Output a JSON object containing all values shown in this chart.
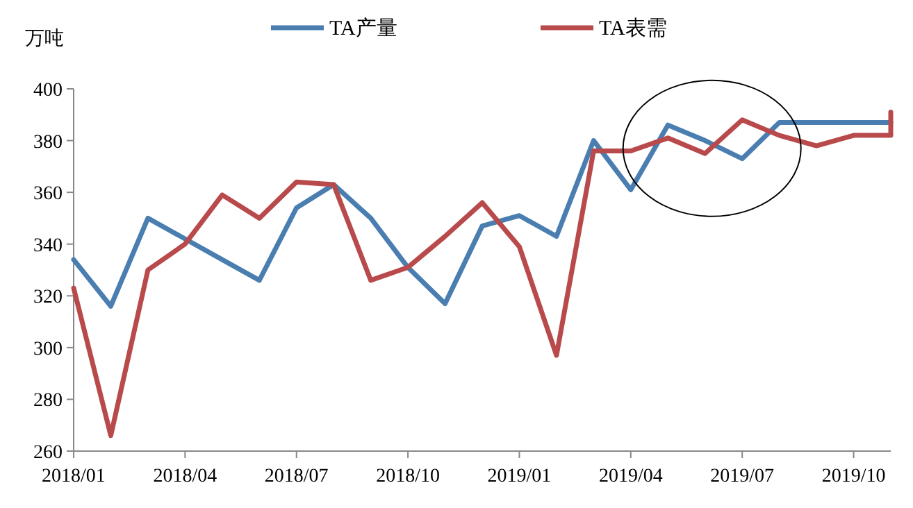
{
  "chart_data": {
    "type": "line",
    "ylabel": "万吨",
    "legend": "top",
    "grid": false,
    "line_style": "solid",
    "xlim": [
      "2018-01",
      "2019-11"
    ],
    "xticks": [
      {
        "value": "2018-01",
        "label": "2018/01"
      },
      {
        "value": "2018-04",
        "label": "2018/04"
      },
      {
        "value": "2018-07",
        "label": "2018/07"
      },
      {
        "value": "2018-10",
        "label": "2018/10"
      },
      {
        "value": "2019-01",
        "label": "2019/01"
      },
      {
        "value": "2019-04",
        "label": "2019/04"
      },
      {
        "value": "2019-07",
        "label": "2019/07"
      },
      {
        "value": "2019-10",
        "label": "2019/10"
      }
    ],
    "ylim": [
      260,
      400
    ],
    "yticks": [
      260,
      280,
      300,
      320,
      340,
      360,
      380,
      400
    ],
    "series": [
      {
        "name": "TA产量",
        "color": "#4a7eb0",
        "x": [
          "2018-01",
          "2018-02",
          "2018-03",
          "2018-04",
          "2018-05",
          "2018-06",
          "2018-07",
          "2018-08",
          "2018-09",
          "2018-10",
          "2018-11",
          "2018-12",
          "2019-01",
          "2019-02",
          "2019-03",
          "2019-04",
          "2019-05",
          "2019-06",
          "2019-07",
          "2019-08",
          "2019-09",
          "2019-10",
          "2019-11"
        ],
        "values": [
          334,
          316,
          350,
          342,
          334,
          326,
          354,
          363,
          350,
          331,
          317,
          347,
          351,
          343,
          380,
          361,
          386,
          380,
          373,
          387,
          387,
          387,
          387
        ]
      },
      {
        "name": "TA表需",
        "color": "#b94a4c",
        "x": [
          "2018-01",
          "2018-02",
          "2018-03",
          "2018-04",
          "2018-05",
          "2018-06",
          "2018-07",
          "2018-08",
          "2018-09",
          "2018-10",
          "2018-11",
          "2018-12",
          "2019-01",
          "2019-02",
          "2019-03",
          "2019-04",
          "2019-05",
          "2019-06",
          "2019-07",
          "2019-08",
          "2019-09",
          "2019-10",
          "2019-11",
          "2019-11"
        ],
        "values": [
          323,
          266,
          330,
          340,
          359,
          350,
          364,
          363,
          326,
          331,
          343,
          356,
          339,
          297,
          376,
          376,
          381,
          375,
          388,
          382,
          378,
          382,
          382,
          391
        ]
      }
    ]
  }
}
